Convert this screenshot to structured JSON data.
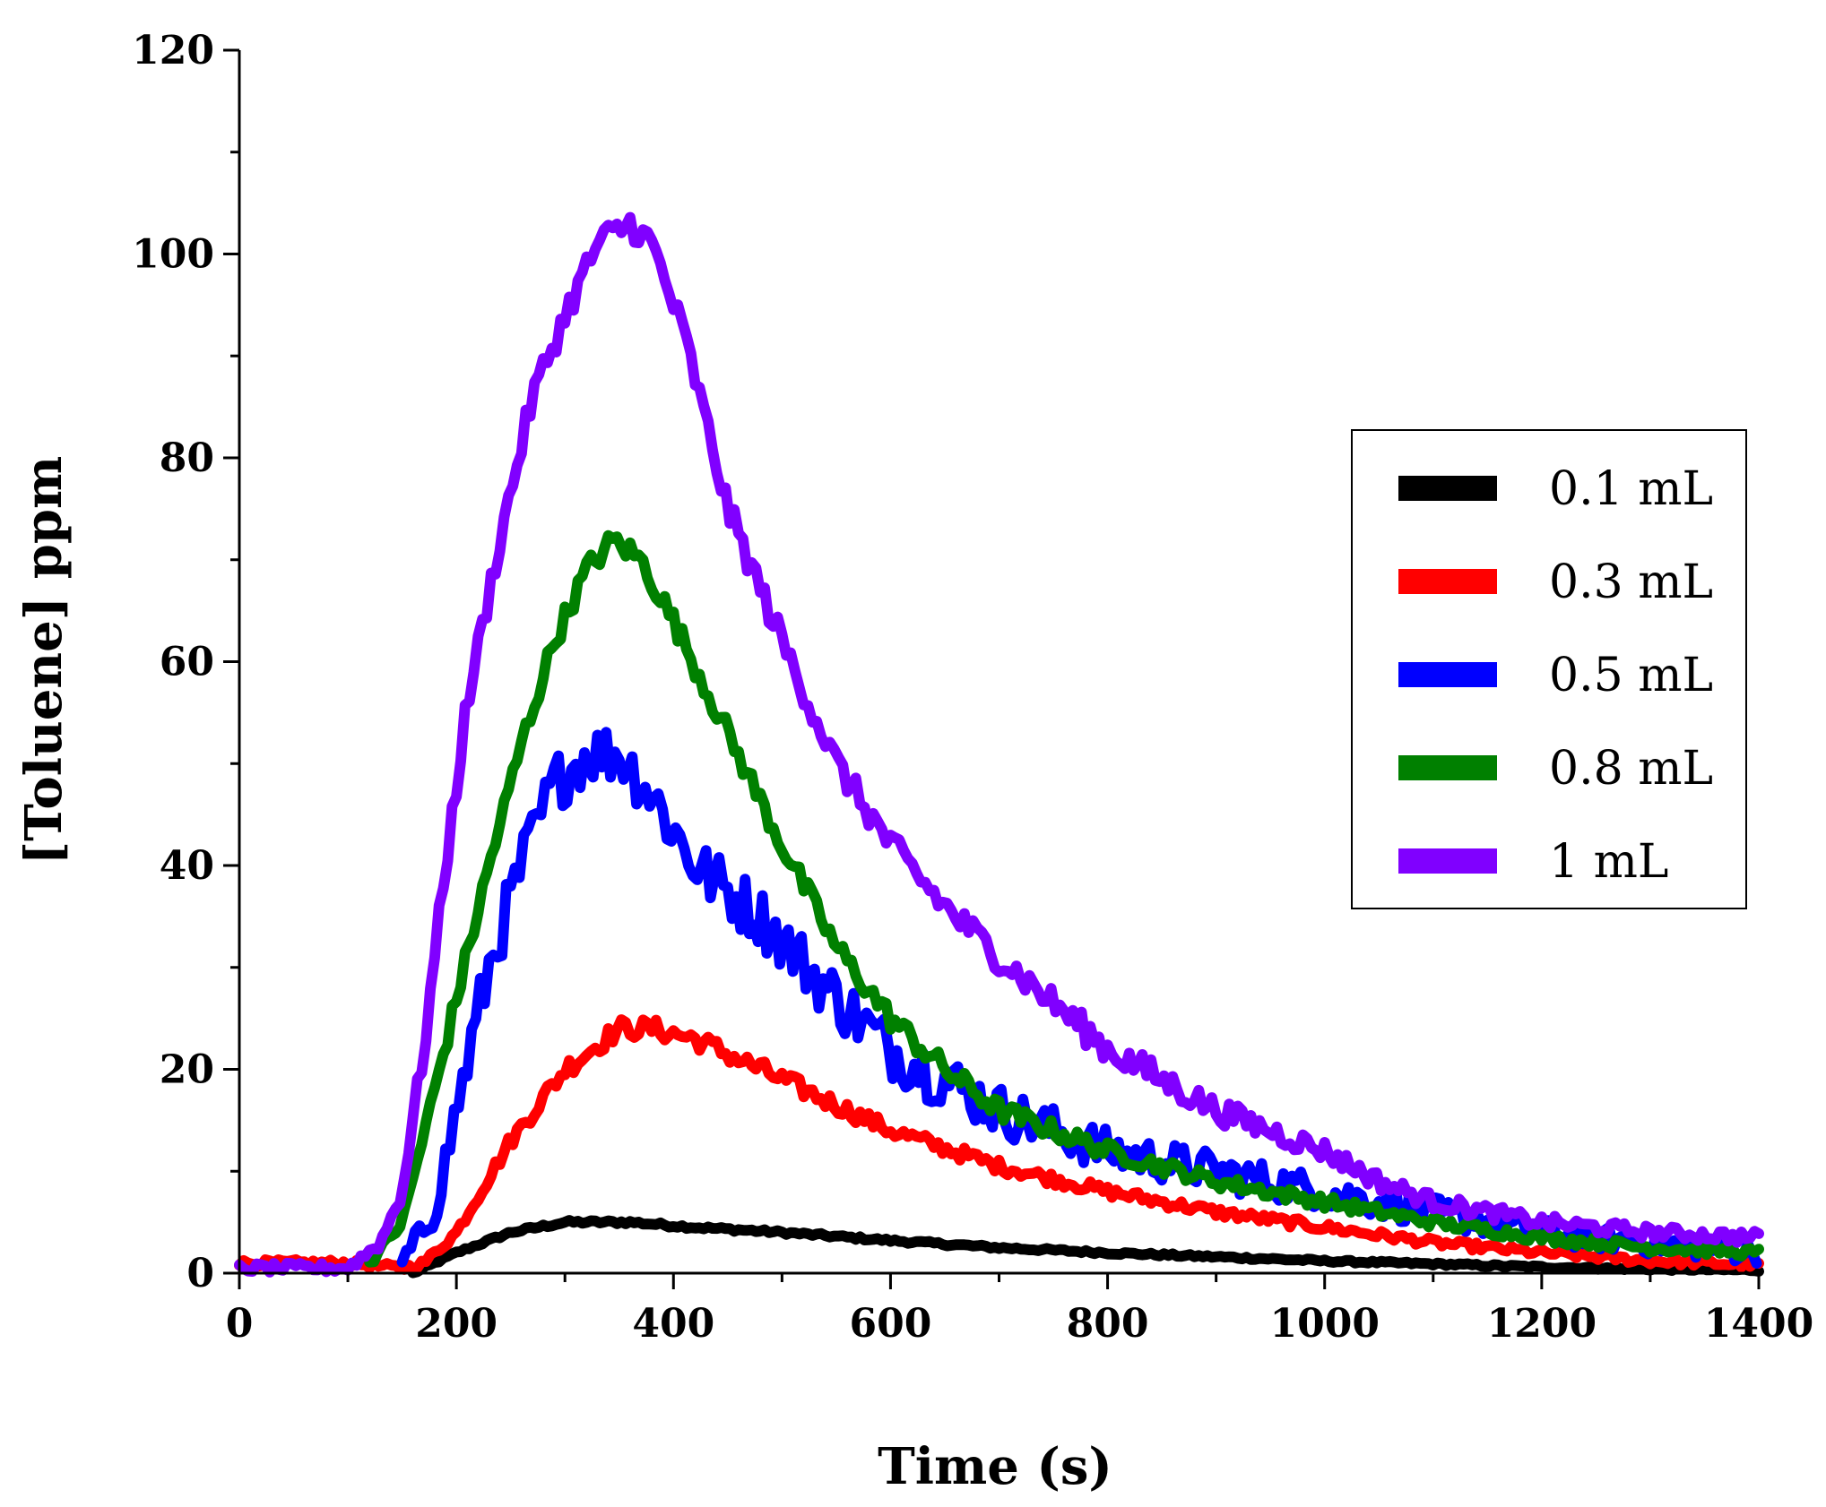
{
  "chart_data": {
    "type": "line",
    "title": "",
    "xlabel": "Time (s)",
    "ylabel": "[Toluene] ppm",
    "xlim": [
      0,
      1400
    ],
    "ylim": [
      0,
      120
    ],
    "xticks": [
      0,
      200,
      400,
      600,
      800,
      1000,
      1200,
      1400
    ],
    "yticks": [
      0,
      20,
      40,
      60,
      80,
      100,
      120
    ],
    "xtick_labels": [
      "0",
      "200",
      "400",
      "600",
      "800",
      "1000",
      "1200",
      "1400"
    ],
    "ytick_labels": [
      "0",
      "20",
      "40",
      "60",
      "80",
      "100",
      "120"
    ],
    "legend_position": "right",
    "grid": false,
    "series": [
      {
        "name": "0.1 mL",
        "color": "#000000",
        "noise": 0.4,
        "x": [
          160,
          200,
          250,
          300,
          360,
          420,
          500,
          600,
          700,
          800,
          900,
          1000,
          1100,
          1200,
          1300,
          1400
        ],
        "y": [
          0,
          2,
          4,
          5,
          5,
          4.5,
          4,
          3.2,
          2.5,
          2,
          1.6,
          1.2,
          0.9,
          0.6,
          0.4,
          0.3
        ]
      },
      {
        "name": "0.3 mL",
        "color": "#ff0000",
        "noise": 1.0,
        "x": [
          0,
          100,
          150,
          170,
          200,
          250,
          300,
          350,
          380,
          420,
          500,
          600,
          700,
          800,
          900,
          1000,
          1100,
          1200,
          1300,
          1400
        ],
        "y": [
          1,
          1,
          0.5,
          1,
          4,
          13,
          20,
          24,
          24,
          23,
          19,
          14,
          10.5,
          8,
          6,
          4.5,
          3,
          2,
          1.2,
          0.8
        ]
      },
      {
        "name": "0.5 mL",
        "color": "#0000ff",
        "noise": 3.0,
        "x": [
          150,
          180,
          200,
          230,
          260,
          290,
          320,
          350,
          380,
          420,
          480,
          550,
          600,
          650,
          700,
          800,
          900,
          1000,
          1100,
          1200,
          1300,
          1400
        ],
        "y": [
          1,
          6,
          16,
          30,
          40,
          48,
          51,
          51,
          47,
          40,
          35,
          27,
          22,
          19,
          16,
          12,
          10,
          8,
          6,
          4,
          3,
          2
        ]
      },
      {
        "name": "0.8 mL",
        "color": "#008000",
        "noise": 1.2,
        "x": [
          120,
          150,
          180,
          200,
          230,
          260,
          290,
          320,
          345,
          370,
          400,
          450,
          500,
          550,
          600,
          650,
          700,
          800,
          900,
          1000,
          1100,
          1200,
          1300,
          1400
        ],
        "y": [
          1,
          5,
          18,
          27,
          40,
          52,
          62,
          69,
          72,
          70,
          64,
          53,
          42,
          32,
          25,
          20,
          16,
          12,
          9,
          7,
          5,
          3.5,
          2.5,
          2
        ]
      },
      {
        "name": "1 mL",
        "color": "#8000ff",
        "noise": 1.5,
        "x": [
          0,
          100,
          130,
          150,
          170,
          190,
          210,
          240,
          270,
          300,
          330,
          360,
          380,
          410,
          450,
          500,
          550,
          600,
          650,
          700,
          800,
          900,
          1000,
          1050,
          1100,
          1200,
          1300,
          1400
        ],
        "y": [
          0.5,
          0.5,
          3,
          8,
          22,
          40,
          56,
          72,
          86,
          94,
          101,
          103,
          101,
          92,
          75,
          62,
          50,
          42,
          36,
          31,
          22,
          16,
          12,
          9,
          7,
          5,
          4,
          3.5
        ]
      }
    ]
  }
}
